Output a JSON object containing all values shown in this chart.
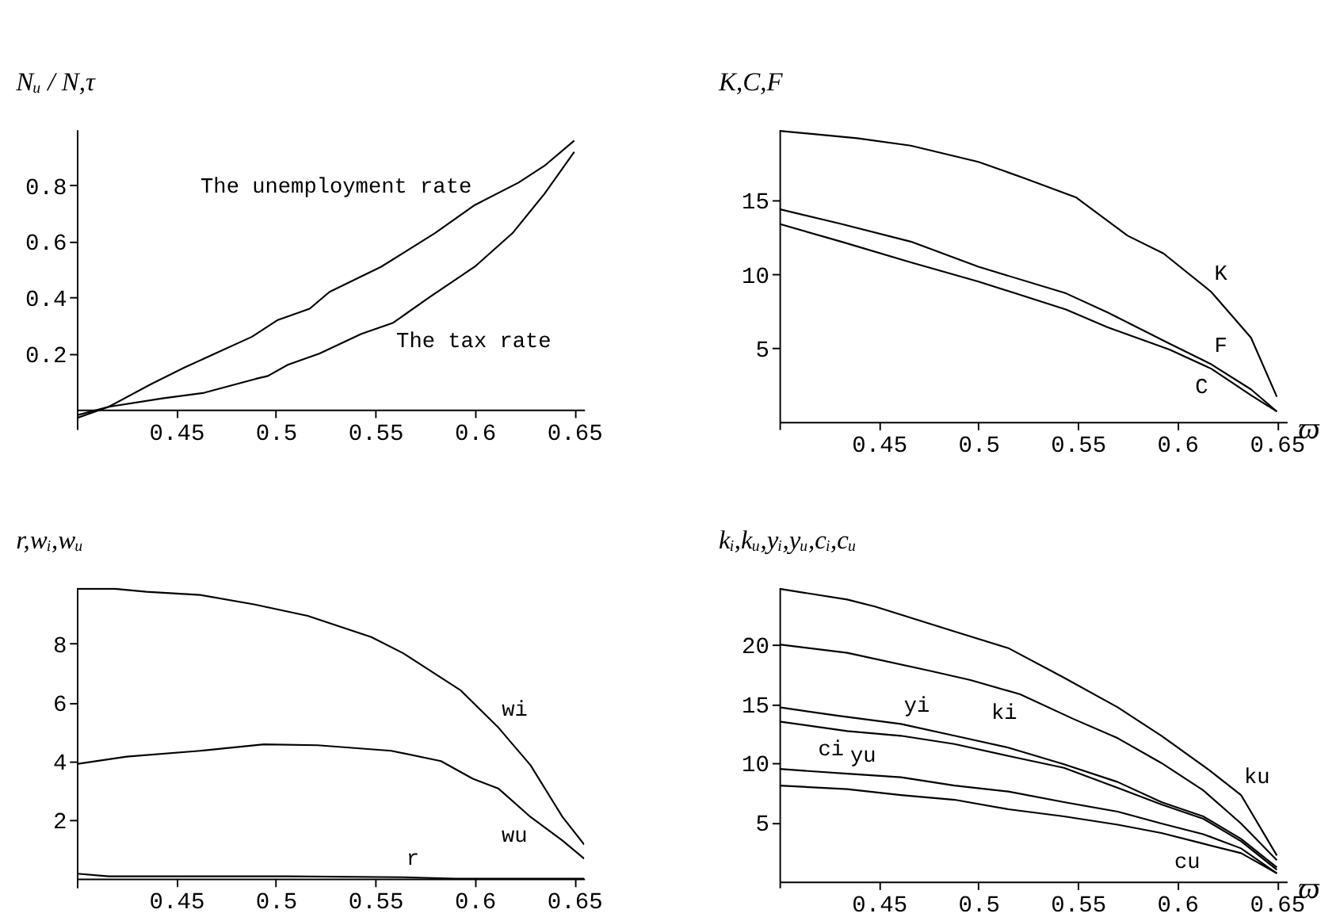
{
  "chart_data": [
    {
      "type": "line",
      "ylabel": "Nᵤ / N,τ",
      "xlim": [
        0.4,
        0.655
      ],
      "ylim": [
        -0.07,
        1.0
      ],
      "xticks": [
        0.45,
        0.5,
        0.55,
        0.6,
        0.65
      ],
      "yticks": [
        0.2,
        0.4,
        0.6,
        0.8
      ],
      "grid": false,
      "legend": false,
      "series": [
        {
          "name": "The unemployment rate",
          "color": "#000000",
          "x": [
            0.4,
            0.416,
            0.437,
            0.454,
            0.488,
            0.501,
            0.517,
            0.527,
            0.553,
            0.58,
            0.6,
            0.622,
            0.635,
            0.65
          ],
          "values": [
            -0.03,
            0.01,
            0.09,
            0.15,
            0.26,
            0.32,
            0.36,
            0.42,
            0.51,
            0.63,
            0.73,
            0.81,
            0.87,
            0.96
          ]
        },
        {
          "name": "The tax rate",
          "color": "#000000",
          "x": [
            0.4,
            0.416,
            0.443,
            0.464,
            0.49,
            0.496,
            0.506,
            0.522,
            0.543,
            0.559,
            0.577,
            0.6,
            0.619,
            0.635,
            0.65
          ],
          "values": [
            -0.02,
            0.01,
            0.04,
            0.06,
            0.11,
            0.12,
            0.16,
            0.2,
            0.27,
            0.31,
            0.4,
            0.51,
            0.63,
            0.77,
            0.92
          ]
        }
      ]
    },
    {
      "type": "line",
      "ylabel": "K,C,F",
      "xlabel": "ϖ",
      "xlim": [
        0.4,
        0.655
      ],
      "ylim": [
        -0.5,
        19.8
      ],
      "xticks": [
        0.45,
        0.5,
        0.55,
        0.6,
        0.65
      ],
      "yticks": [
        5,
        10,
        15
      ],
      "grid": false,
      "legend": false,
      "series": [
        {
          "name": "K",
          "color": "#000000",
          "x": [
            0.4,
            0.439,
            0.466,
            0.5,
            0.523,
            0.549,
            0.575,
            0.593,
            0.617,
            0.637,
            0.65
          ],
          "values": [
            19.7,
            19.2,
            18.7,
            17.6,
            16.5,
            15.2,
            12.6,
            11.4,
            8.8,
            5.7,
            1.7
          ]
        },
        {
          "name": "F",
          "color": "#000000",
          "x": [
            0.4,
            0.431,
            0.466,
            0.5,
            0.544,
            0.565,
            0.596,
            0.617,
            0.637,
            0.65
          ],
          "values": [
            14.4,
            13.4,
            12.2,
            10.5,
            8.7,
            7.4,
            5.3,
            3.9,
            2.2,
            0.7
          ]
        },
        {
          "name": "C",
          "color": "#000000",
          "x": [
            0.4,
            0.431,
            0.466,
            0.5,
            0.544,
            0.565,
            0.596,
            0.617,
            0.637,
            0.65
          ],
          "values": [
            13.4,
            12.2,
            10.8,
            9.5,
            7.6,
            6.4,
            4.9,
            3.6,
            1.8,
            0.7
          ]
        }
      ]
    },
    {
      "type": "line",
      "ylabel": "r,wᵢ,wᵤ",
      "xlim": [
        0.4,
        0.655
      ],
      "ylim": [
        -0.3,
        9.9
      ],
      "xticks": [
        0.45,
        0.5,
        0.55,
        0.6,
        0.65
      ],
      "yticks": [
        2,
        4,
        6,
        8
      ],
      "grid": false,
      "legend": false,
      "series": [
        {
          "name": "wi",
          "color": "#000000",
          "x": [
            0.4,
            0.419,
            0.435,
            0.462,
            0.489,
            0.516,
            0.548,
            0.564,
            0.593,
            0.612,
            0.628,
            0.644,
            0.655
          ],
          "values": [
            9.86,
            9.86,
            9.76,
            9.65,
            9.33,
            8.94,
            8.22,
            7.67,
            6.4,
            5.13,
            3.86,
            2.11,
            1.16
          ]
        },
        {
          "name": "wu",
          "color": "#000000",
          "x": [
            0.4,
            0.425,
            0.462,
            0.494,
            0.521,
            0.558,
            0.583,
            0.599,
            0.612,
            0.628,
            0.644,
            0.655
          ],
          "values": [
            3.9,
            4.15,
            4.35,
            4.57,
            4.54,
            4.35,
            4.0,
            3.4,
            3.06,
            2.1,
            1.3,
            0.68
          ]
        },
        {
          "name": "r",
          "color": "#000000",
          "x": [
            0.4,
            0.416,
            0.505,
            0.564,
            0.59,
            0.655
          ],
          "values": [
            0.17,
            0.08,
            0.08,
            0.05,
            0.0,
            0.0
          ]
        }
      ]
    },
    {
      "type": "line",
      "ylabel": "kᵢ,kᵤ,yᵢ,yᵤ,cᵢ,cᵤ",
      "xlabel": "ϖ",
      "xlim": [
        0.4,
        0.655
      ],
      "ylim": [
        -0.5,
        24.8
      ],
      "xticks": [
        0.45,
        0.5,
        0.55,
        0.6,
        0.65
      ],
      "yticks": [
        5,
        10,
        15,
        20
      ],
      "grid": false,
      "legend": false,
      "series": [
        {
          "name": "ku",
          "color": "#000000",
          "x": [
            0.4,
            0.434,
            0.448,
            0.488,
            0.515,
            0.543,
            0.57,
            0.592,
            0.616,
            0.632,
            0.65
          ],
          "values": [
            24.7,
            23.8,
            23.2,
            21.1,
            19.7,
            17.2,
            14.7,
            12.3,
            9.4,
            7.3,
            2.2
          ]
        },
        {
          "name": "ki",
          "color": "#000000",
          "x": [
            0.4,
            0.434,
            0.475,
            0.496,
            0.521,
            0.548,
            0.57,
            0.592,
            0.613,
            0.632,
            0.65
          ],
          "values": [
            20.0,
            19.3,
            17.8,
            17.0,
            15.8,
            13.7,
            12.1,
            10.0,
            7.7,
            4.9,
            1.8
          ]
        },
        {
          "name": "yi",
          "color": "#000000",
          "x": [
            0.4,
            0.429,
            0.461,
            0.488,
            0.515,
            0.543,
            0.57,
            0.592,
            0.613,
            0.632,
            0.65
          ],
          "values": [
            14.7,
            14.0,
            13.3,
            12.3,
            11.3,
            9.9,
            8.4,
            6.7,
            5.5,
            3.6,
            1.2
          ]
        },
        {
          "name": "ci",
          "color": "#000000",
          "x": [
            0.4,
            0.434,
            0.461,
            0.488,
            0.515,
            0.543,
            0.57,
            0.592,
            0.613,
            0.632,
            0.65
          ],
          "values": [
            13.5,
            12.7,
            12.3,
            11.6,
            10.6,
            9.6,
            7.9,
            6.5,
            5.3,
            3.4,
            1.0
          ]
        },
        {
          "name": "yu",
          "color": "#000000",
          "x": [
            0.4,
            0.434,
            0.461,
            0.488,
            0.515,
            0.543,
            0.57,
            0.592,
            0.613,
            0.632,
            0.65
          ],
          "values": [
            9.5,
            9.1,
            8.8,
            8.1,
            7.6,
            6.7,
            5.9,
            4.9,
            4.0,
            2.8,
            0.7
          ]
        },
        {
          "name": "cu",
          "color": "#000000",
          "x": [
            0.4,
            0.434,
            0.461,
            0.488,
            0.515,
            0.543,
            0.57,
            0.592,
            0.613,
            0.632,
            0.65
          ],
          "values": [
            8.1,
            7.8,
            7.3,
            6.9,
            6.1,
            5.5,
            4.8,
            4.1,
            3.2,
            2.4,
            0.7
          ]
        }
      ]
    }
  ]
}
